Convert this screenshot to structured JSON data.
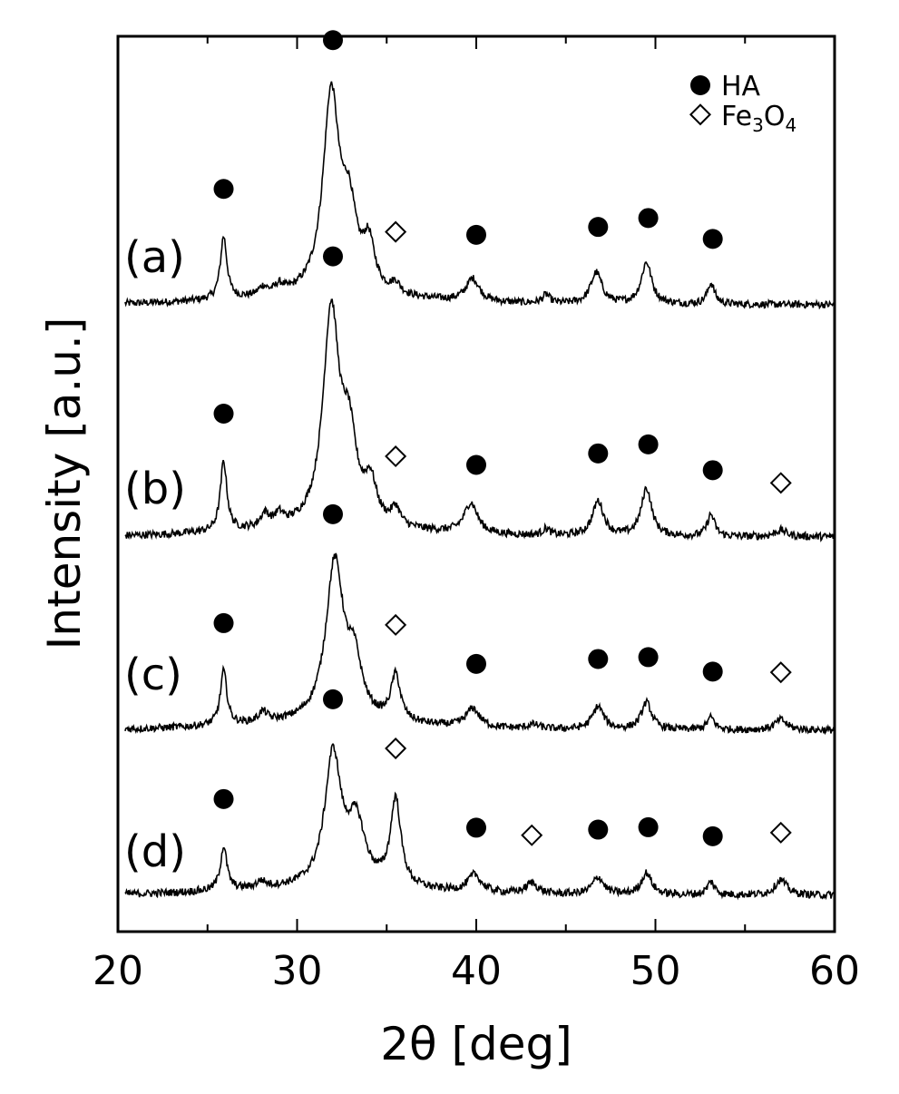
{
  "chart_data": {
    "type": "line",
    "title": "",
    "xlabel": "2θ [deg]",
    "ylabel": "Intensity [a.u.]",
    "xlim": [
      20,
      60
    ],
    "xticks": [
      20,
      30,
      40,
      50,
      60
    ],
    "yticks_shown": false,
    "legend": {
      "placement": "top-right",
      "entries": [
        {
          "marker": "filled-circle",
          "label": "HA"
        },
        {
          "marker": "open-diamond",
          "label_main": "Fe",
          "label_sub1": "3",
          "label_mid": "O",
          "label_sub2": "4"
        }
      ]
    },
    "series": [
      {
        "name": "(a)",
        "baseline": 0.0,
        "peaks": [
          {
            "x": 25.9,
            "h": 0.3,
            "w": 0.22
          },
          {
            "x": 28.1,
            "h": 0.04,
            "w": 0.3
          },
          {
            "x": 29.0,
            "h": 0.04,
            "w": 0.3
          },
          {
            "x": 31.9,
            "h": 0.95,
            "w": 0.55
          },
          {
            "x": 32.9,
            "h": 0.35,
            "w": 0.5
          },
          {
            "x": 34.0,
            "h": 0.22,
            "w": 0.4
          },
          {
            "x": 35.5,
            "h": 0.05,
            "w": 0.3
          },
          {
            "x": 39.8,
            "h": 0.11,
            "w": 0.45
          },
          {
            "x": 43.9,
            "h": 0.04,
            "w": 0.25
          },
          {
            "x": 46.7,
            "h": 0.15,
            "w": 0.38
          },
          {
            "x": 49.5,
            "h": 0.2,
            "w": 0.35
          },
          {
            "x": 53.1,
            "h": 0.1,
            "w": 0.25
          }
        ],
        "markers": [
          {
            "type": "HA",
            "x": 25.9
          },
          {
            "type": "HA",
            "x": 32.0
          },
          {
            "type": "Fe3O4",
            "x": 35.5
          },
          {
            "type": "HA",
            "x": 40.0
          },
          {
            "type": "HA",
            "x": 46.8
          },
          {
            "type": "HA",
            "x": 49.6
          },
          {
            "type": "HA",
            "x": 53.2
          }
        ]
      },
      {
        "name": "(b)",
        "baseline": 0.0,
        "peaks": [
          {
            "x": 25.9,
            "h": 0.32,
            "w": 0.22
          },
          {
            "x": 28.2,
            "h": 0.06,
            "w": 0.3
          },
          {
            "x": 29.0,
            "h": 0.05,
            "w": 0.3
          },
          {
            "x": 31.9,
            "h": 0.98,
            "w": 0.55
          },
          {
            "x": 32.9,
            "h": 0.36,
            "w": 0.5
          },
          {
            "x": 34.1,
            "h": 0.18,
            "w": 0.4
          },
          {
            "x": 35.5,
            "h": 0.08,
            "w": 0.3
          },
          {
            "x": 39.7,
            "h": 0.14,
            "w": 0.45
          },
          {
            "x": 43.9,
            "h": 0.03,
            "w": 0.25
          },
          {
            "x": 46.8,
            "h": 0.16,
            "w": 0.38
          },
          {
            "x": 49.5,
            "h": 0.22,
            "w": 0.35
          },
          {
            "x": 53.1,
            "h": 0.1,
            "w": 0.25
          },
          {
            "x": 57.0,
            "h": 0.03,
            "w": 0.4
          }
        ],
        "markers": [
          {
            "type": "HA",
            "x": 25.9
          },
          {
            "type": "HA",
            "x": 32.0
          },
          {
            "type": "Fe3O4",
            "x": 35.5
          },
          {
            "type": "HA",
            "x": 40.0
          },
          {
            "type": "HA",
            "x": 46.8
          },
          {
            "type": "HA",
            "x": 49.6
          },
          {
            "type": "HA",
            "x": 53.2
          },
          {
            "type": "Fe3O4",
            "x": 57.0
          }
        ]
      },
      {
        "name": "(c)",
        "baseline": 0.0,
        "peaks": [
          {
            "x": 25.9,
            "h": 0.26,
            "w": 0.22
          },
          {
            "x": 28.1,
            "h": 0.05,
            "w": 0.3
          },
          {
            "x": 32.1,
            "h": 0.76,
            "w": 0.6
          },
          {
            "x": 33.2,
            "h": 0.25,
            "w": 0.5
          },
          {
            "x": 35.5,
            "h": 0.22,
            "w": 0.32
          },
          {
            "x": 39.8,
            "h": 0.09,
            "w": 0.45
          },
          {
            "x": 43.2,
            "h": 0.02,
            "w": 0.4
          },
          {
            "x": 46.8,
            "h": 0.11,
            "w": 0.38
          },
          {
            "x": 49.5,
            "h": 0.13,
            "w": 0.35
          },
          {
            "x": 53.1,
            "h": 0.06,
            "w": 0.25
          },
          {
            "x": 57.0,
            "h": 0.05,
            "w": 0.4
          }
        ],
        "markers": [
          {
            "type": "HA",
            "x": 25.9
          },
          {
            "type": "HA",
            "x": 32.0
          },
          {
            "type": "Fe3O4",
            "x": 35.5
          },
          {
            "type": "HA",
            "x": 40.0
          },
          {
            "type": "HA",
            "x": 46.8
          },
          {
            "type": "HA",
            "x": 49.6
          },
          {
            "type": "HA",
            "x": 53.2
          },
          {
            "type": "Fe3O4",
            "x": 57.0
          }
        ]
      },
      {
        "name": "(d)",
        "baseline": 0.0,
        "peaks": [
          {
            "x": 25.9,
            "h": 0.2,
            "w": 0.22
          },
          {
            "x": 28.0,
            "h": 0.03,
            "w": 0.3
          },
          {
            "x": 32.0,
            "h": 0.6,
            "w": 0.55
          },
          {
            "x": 33.3,
            "h": 0.28,
            "w": 0.6
          },
          {
            "x": 35.5,
            "h": 0.4,
            "w": 0.35
          },
          {
            "x": 39.9,
            "h": 0.08,
            "w": 0.45
          },
          {
            "x": 43.1,
            "h": 0.05,
            "w": 0.4
          },
          {
            "x": 46.8,
            "h": 0.08,
            "w": 0.38
          },
          {
            "x": 49.5,
            "h": 0.1,
            "w": 0.35
          },
          {
            "x": 53.1,
            "h": 0.06,
            "w": 0.25
          },
          {
            "x": 57.0,
            "h": 0.07,
            "w": 0.4
          }
        ],
        "markers": [
          {
            "type": "HA",
            "x": 25.9
          },
          {
            "type": "HA",
            "x": 32.0
          },
          {
            "type": "Fe3O4",
            "x": 35.5
          },
          {
            "type": "HA",
            "x": 40.0
          },
          {
            "type": "Fe3O4",
            "x": 43.1
          },
          {
            "type": "HA",
            "x": 46.8
          },
          {
            "type": "HA",
            "x": 49.6
          },
          {
            "type": "HA",
            "x": 53.2
          },
          {
            "type": "Fe3O4",
            "x": 57.0
          }
        ]
      }
    ]
  }
}
